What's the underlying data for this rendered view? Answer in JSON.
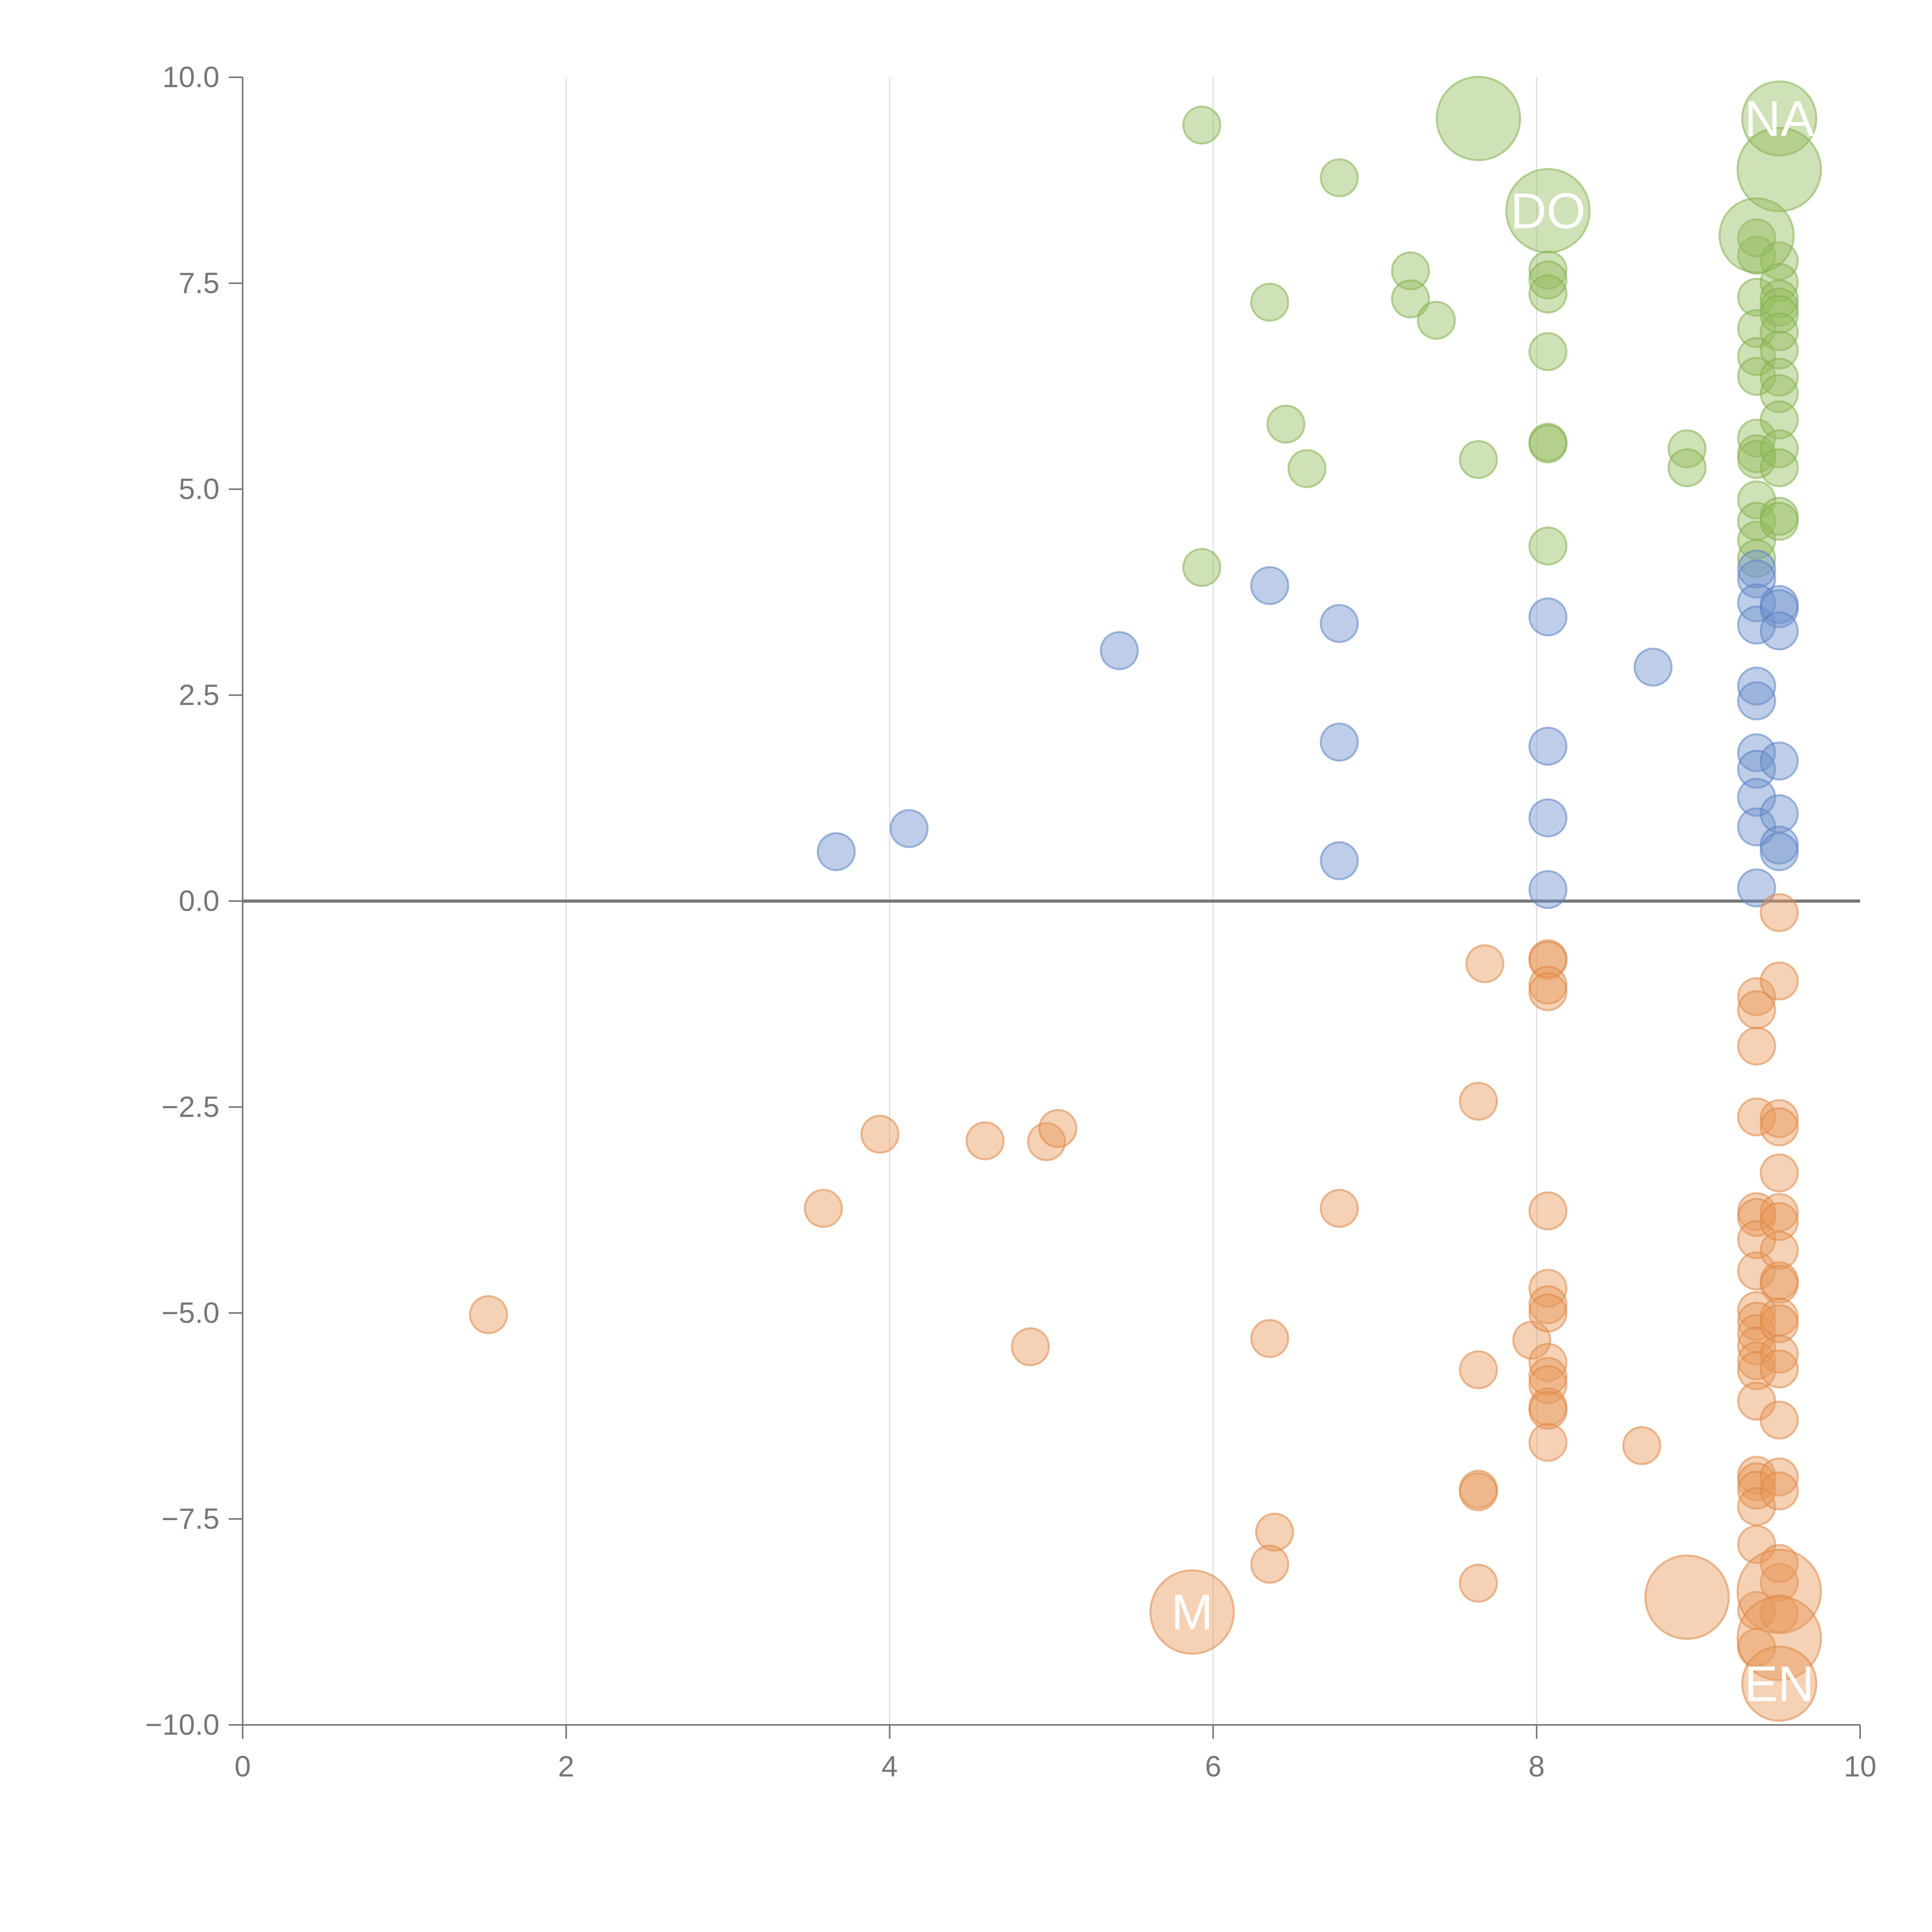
{
  "chart_data": {
    "type": "scatter",
    "title": "",
    "xlabel": "",
    "ylabel": "",
    "xlim": [
      0,
      10
    ],
    "ylim": [
      -10,
      10
    ],
    "x_ticks": [
      {
        "value": 0,
        "label": "0"
      },
      {
        "value": 2,
        "label": "2"
      },
      {
        "value": 4,
        "label": "4"
      },
      {
        "value": 6,
        "label": "6"
      },
      {
        "value": 8,
        "label": "8"
      },
      {
        "value": 10,
        "label": "10"
      }
    ],
    "y_ticks": [
      {
        "value": 10,
        "label": "10.0"
      },
      {
        "value": 7.5,
        "label": "7.5"
      },
      {
        "value": 5,
        "label": "5.0"
      },
      {
        "value": 2.5,
        "label": "2.5"
      },
      {
        "value": 0,
        "label": "0.0"
      },
      {
        "value": -2.5,
        "label": "−2.5"
      },
      {
        "value": -5,
        "label": "−5.0"
      },
      {
        "value": -7.5,
        "label": "−7.5"
      },
      {
        "value": -10,
        "label": "−10.0"
      }
    ],
    "vertical_grid": true,
    "zero_line": true,
    "legend": "none",
    "colors": {
      "axis": "#777777",
      "grid": "#dddddd",
      "zero_line": "#777777"
    },
    "series": [
      {
        "name": "green",
        "color": "#94bd5e",
        "stroke": "#83b04f",
        "points": [
          [
            5.93,
            9.42,
            1
          ],
          [
            6.78,
            8.78,
            1
          ],
          [
            7.22,
            7.65,
            1
          ],
          [
            6.35,
            7.27,
            1
          ],
          [
            7.22,
            7.31,
            1
          ],
          [
            7.38,
            7.05,
            1
          ],
          [
            6.45,
            5.79,
            1
          ],
          [
            6.58,
            5.25,
            1
          ],
          [
            7.64,
            5.36,
            1
          ],
          [
            5.93,
            4.05,
            1
          ],
          [
            8.07,
            7.66,
            1
          ],
          [
            8.07,
            7.54,
            1
          ],
          [
            8.07,
            7.37,
            1
          ],
          [
            8.07,
            6.67,
            1
          ],
          [
            8.07,
            5.57,
            1
          ],
          [
            8.07,
            5.55,
            1
          ],
          [
            8.07,
            4.31,
            1
          ],
          [
            8.93,
            5.49,
            1
          ],
          [
            8.93,
            5.26,
            1
          ],
          [
            9.36,
            7.84,
            1
          ],
          [
            9.36,
            7.33,
            1
          ],
          [
            9.36,
            6.95,
            1
          ],
          [
            9.36,
            6.61,
            1
          ],
          [
            9.36,
            6.37,
            1
          ],
          [
            9.36,
            5.62,
            1
          ],
          [
            9.36,
            5.43,
            1
          ],
          [
            9.36,
            5.36,
            1
          ],
          [
            9.36,
            4.87,
            1
          ],
          [
            9.36,
            4.61,
            1
          ],
          [
            9.36,
            4.38,
            1
          ],
          [
            9.36,
            4.16,
            1
          ],
          [
            9.36,
            8.05,
            1
          ],
          [
            9.5,
            7.77,
            1
          ],
          [
            9.5,
            7.51,
            1
          ],
          [
            9.5,
            7.31,
            1
          ],
          [
            9.5,
            7.21,
            1
          ],
          [
            9.5,
            7.12,
            1
          ],
          [
            9.5,
            6.91,
            1
          ],
          [
            9.5,
            6.69,
            1
          ],
          [
            9.5,
            6.36,
            1
          ],
          [
            9.5,
            6.16,
            1
          ],
          [
            9.5,
            5.84,
            1
          ],
          [
            9.5,
            5.49,
            1
          ],
          [
            9.5,
            5.26,
            1
          ],
          [
            9.5,
            4.67,
            1
          ],
          [
            9.5,
            4.61,
            1
          ]
        ]
      },
      {
        "name": "blue",
        "color": "#7193cc",
        "stroke": "#5a82c2",
        "points": [
          [
            3.67,
            0.6,
            1
          ],
          [
            4.12,
            0.88,
            1
          ],
          [
            5.42,
            3.04,
            1
          ],
          [
            6.35,
            3.83,
            1
          ],
          [
            6.78,
            3.37,
            1
          ],
          [
            6.78,
            1.93,
            1
          ],
          [
            6.78,
            0.49,
            1
          ],
          [
            8.07,
            3.45,
            1
          ],
          [
            8.07,
            1.88,
            1
          ],
          [
            8.07,
            1.01,
            1
          ],
          [
            8.07,
            0.14,
            1
          ],
          [
            8.72,
            2.84,
            1
          ],
          [
            9.36,
            4.03,
            1
          ],
          [
            9.36,
            3.91,
            1
          ],
          [
            9.36,
            3.62,
            1
          ],
          [
            9.36,
            3.35,
            1
          ],
          [
            9.36,
            2.61,
            1
          ],
          [
            9.36,
            2.43,
            1
          ],
          [
            9.36,
            1.8,
            1
          ],
          [
            9.36,
            1.6,
            1
          ],
          [
            9.36,
            1.26,
            1
          ],
          [
            9.36,
            0.9,
            1
          ],
          [
            9.36,
            0.16,
            1
          ],
          [
            9.5,
            3.6,
            1
          ],
          [
            9.5,
            3.55,
            1
          ],
          [
            9.5,
            3.28,
            1
          ],
          [
            9.5,
            1.7,
            1
          ],
          [
            9.5,
            1.06,
            1
          ],
          [
            9.5,
            0.68,
            1
          ],
          [
            9.5,
            0.6,
            1
          ]
        ]
      },
      {
        "name": "orange",
        "color": "#e89a5c",
        "stroke": "#dd8645",
        "points": [
          [
            1.52,
            -5.02,
            1
          ],
          [
            3.59,
            -3.73,
            1
          ],
          [
            3.94,
            -2.83,
            1
          ],
          [
            4.59,
            -2.91,
            1
          ],
          [
            4.97,
            -2.92,
            1
          ],
          [
            5.04,
            -2.76,
            1
          ],
          [
            4.87,
            -5.41,
            1
          ],
          [
            6.35,
            -5.31,
            1
          ],
          [
            6.38,
            -7.66,
            1
          ],
          [
            6.35,
            -8.05,
            1
          ],
          [
            6.78,
            -3.73,
            1
          ],
          [
            7.64,
            -2.43,
            1
          ],
          [
            7.68,
            -0.76,
            1
          ],
          [
            7.64,
            -5.69,
            1
          ],
          [
            7.64,
            -7.14,
            1
          ],
          [
            7.64,
            -7.17,
            1
          ],
          [
            7.64,
            -8.28,
            1
          ],
          [
            7.97,
            -5.33,
            1
          ],
          [
            8.07,
            -0.7,
            1
          ],
          [
            8.07,
            -0.72,
            1
          ],
          [
            8.07,
            -1.02,
            1
          ],
          [
            8.07,
            -1.1,
            1
          ],
          [
            8.07,
            -3.76,
            1
          ],
          [
            8.07,
            -4.7,
            1
          ],
          [
            8.07,
            -4.9,
            1
          ],
          [
            8.07,
            -5.0,
            1
          ],
          [
            8.07,
            -5.6,
            1
          ],
          [
            8.07,
            -5.77,
            1
          ],
          [
            8.07,
            -5.87,
            1
          ],
          [
            8.07,
            -6.14,
            1
          ],
          [
            8.07,
            -6.18,
            1
          ],
          [
            8.07,
            -6.57,
            1
          ],
          [
            8.65,
            -6.61,
            1
          ],
          [
            9.36,
            -1.16,
            1
          ],
          [
            9.36,
            -1.32,
            1
          ],
          [
            9.36,
            -1.76,
            1
          ],
          [
            9.36,
            -2.62,
            1
          ],
          [
            9.36,
            -3.77,
            1
          ],
          [
            9.36,
            -3.84,
            1
          ],
          [
            9.36,
            -4.11,
            1
          ],
          [
            9.36,
            -4.49,
            1
          ],
          [
            9.36,
            -4.97,
            1
          ],
          [
            9.36,
            -5.1,
            1
          ],
          [
            9.36,
            -5.25,
            1
          ],
          [
            9.36,
            -5.4,
            1
          ],
          [
            9.36,
            -5.58,
            1
          ],
          [
            9.36,
            -5.7,
            1
          ],
          [
            9.36,
            -6.07,
            1
          ],
          [
            9.36,
            -6.97,
            1
          ],
          [
            9.36,
            -7.05,
            1
          ],
          [
            9.36,
            -7.15,
            1
          ],
          [
            9.36,
            -7.35,
            1
          ],
          [
            9.36,
            -7.81,
            1
          ],
          [
            9.36,
            -8.61,
            1
          ],
          [
            9.36,
            -9.06,
            1
          ],
          [
            9.5,
            -0.14,
            1
          ],
          [
            9.5,
            -0.97,
            1
          ],
          [
            9.5,
            -2.64,
            1
          ],
          [
            9.5,
            -2.74,
            1
          ],
          [
            9.5,
            -3.3,
            1
          ],
          [
            9.5,
            -3.78,
            1
          ],
          [
            9.5,
            -3.89,
            1
          ],
          [
            9.5,
            -4.24,
            1
          ],
          [
            9.5,
            -4.61,
            1
          ],
          [
            9.5,
            -4.65,
            1
          ],
          [
            9.5,
            -5.05,
            1
          ],
          [
            9.5,
            -5.13,
            1
          ],
          [
            9.5,
            -5.5,
            1
          ],
          [
            9.5,
            -5.68,
            1
          ],
          [
            9.5,
            -6.3,
            1
          ],
          [
            9.5,
            -6.99,
            1
          ],
          [
            9.5,
            -7.16,
            1
          ],
          [
            9.5,
            -8.04,
            1
          ],
          [
            9.5,
            -8.27,
            1
          ],
          [
            9.5,
            -8.65,
            1
          ]
        ]
      }
    ],
    "large_points": [
      {
        "series": "green",
        "x": 7.64,
        "y": 9.5,
        "size": 2.25
      },
      {
        "series": "green",
        "x": 9.5,
        "y": 9.5,
        "size": 2.0,
        "label": "NA"
      },
      {
        "series": "green",
        "x": 9.5,
        "y": 8.88,
        "size": 2.25
      },
      {
        "series": "green",
        "x": 8.07,
        "y": 8.38,
        "size": 2.25,
        "label": "DO"
      },
      {
        "series": "green",
        "x": 9.36,
        "y": 8.08,
        "size": 2.0
      },
      {
        "series": "orange",
        "x": 5.87,
        "y": -8.63,
        "size": 2.25,
        "label": "M"
      },
      {
        "series": "orange",
        "x": 8.93,
        "y": -8.45,
        "size": 2.25
      },
      {
        "series": "orange",
        "x": 9.5,
        "y": -8.38,
        "size": 2.25
      },
      {
        "series": "orange",
        "x": 9.5,
        "y": -8.95,
        "size": 2.25
      },
      {
        "series": "orange",
        "x": 9.5,
        "y": -9.5,
        "size": 2.0,
        "label": "EN"
      }
    ]
  }
}
